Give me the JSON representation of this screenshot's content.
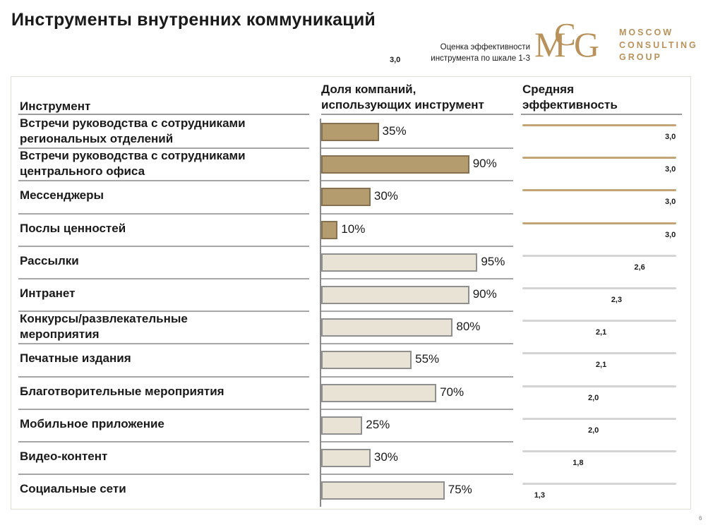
{
  "title": "Инструменты внутренних коммуникаций",
  "legend": {
    "value": "3,0",
    "text_line1": "Оценка эффективности",
    "text_line2": "инструмента по шкале 1-3"
  },
  "logo": {
    "line1": "MOSCOW",
    "line2": "CONSULTING",
    "line3": "GROUP",
    "color": "#b8925a"
  },
  "headers": {
    "tool": "Инструмент",
    "share_line1": "Доля компаний,",
    "share_line2": "использующих инструмент",
    "eff_line1": "Средняя",
    "eff_line2": "эффективность"
  },
  "colors": {
    "top_bar": "#b49c6e",
    "rest_bar": "#e8e3d4",
    "top_line": "#c2a576",
    "rest_line": "#d4d4d4"
  },
  "page_number": "6",
  "chart_data": {
    "type": "bar",
    "orientation": "horizontal",
    "categories": [
      "Встречи руководства с сотрудниками региональных отделений",
      "Встречи руководства с сотрудниками центрального офиса",
      "Мессенджеры",
      "Послы ценностей",
      "Рассылки",
      "Интранет",
      "Конкурсы/развлекательные мероприятия",
      "Печатные издания",
      "Благотворительные мероприятия",
      "Мобильное приложение",
      "Видео-контент",
      "Социальные сети"
    ],
    "labels": [
      [
        "Встречи руководства с сотрудниками",
        "региональных отделений"
      ],
      [
        "Встречи руководства с сотрудниками",
        "центрального офиса"
      ],
      [
        "Мессенджеры"
      ],
      [
        "Послы ценностей"
      ],
      [
        "Рассылки"
      ],
      [
        "Интранет"
      ],
      [
        "Конкурсы/развлекательные",
        "мероприятия"
      ],
      [
        "Печатные издания"
      ],
      [
        "Благотворительные мероприятия"
      ],
      [
        "Мобильное приложение"
      ],
      [
        "Видео-контент"
      ],
      [
        "Социальные сети"
      ]
    ],
    "series": [
      {
        "values": [
          35,
          90,
          30,
          10,
          95,
          90,
          80,
          55,
          70,
          25,
          30,
          75
        ],
        "labels": [
          "35%",
          "90%",
          "30%",
          "10%",
          "95%",
          "90%",
          "80%",
          "55%",
          "70%",
          "25%",
          "30%",
          "75%"
        ]
      },
      {
        "values": [
          3.0,
          3.0,
          3.0,
          3.0,
          2.6,
          2.3,
          2.1,
          2.1,
          2.0,
          2.0,
          1.8,
          1.3
        ],
        "labels": [
          "3,0",
          "3,0",
          "3,0",
          "3,0",
          "2,6",
          "2,3",
          "2,1",
          "2,1",
          "2,0",
          "2,0",
          "1,8",
          "1,3"
        ]
      }
    ],
    "share_xlim": [
      0,
      100
    ],
    "eff_scale": [
      1,
      3
    ]
  }
}
